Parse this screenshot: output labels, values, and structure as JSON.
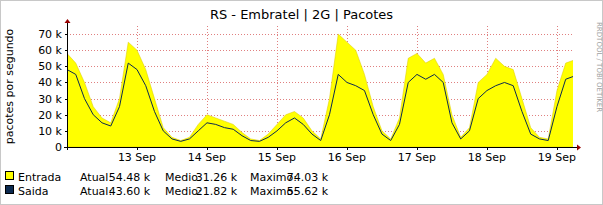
{
  "chart_data": {
    "type": "area",
    "title": "RS - Embratel | 2G | Pacotes",
    "y_label": "pacotes por segundo",
    "annotations": [
      "RRDTOOL / TOBI OETIKER"
    ],
    "x": [
      0,
      3,
      6,
      9,
      12,
      15,
      18,
      21,
      24,
      27,
      30,
      33,
      36,
      39,
      42,
      45,
      48,
      51,
      54,
      57,
      60,
      63,
      66,
      69,
      72,
      75,
      78,
      81,
      84,
      87,
      90,
      93,
      96,
      99,
      102,
      105,
      108,
      111,
      114,
      117,
      120,
      123,
      126,
      129,
      132,
      135,
      138,
      141,
      144,
      147,
      150,
      153,
      156,
      159,
      162,
      165,
      168,
      171,
      174
    ],
    "xlim": [
      0,
      173.5
    ],
    "xticks": [
      {
        "value": 24,
        "label": "13 Sep"
      },
      {
        "value": 48,
        "label": "14 Sep"
      },
      {
        "value": 72,
        "label": "15 Sep"
      },
      {
        "value": 96,
        "label": "16 Sep"
      },
      {
        "value": 120,
        "label": "17 Sep"
      },
      {
        "value": 144,
        "label": "18 Sep"
      },
      {
        "value": 168,
        "label": "19 Sep"
      }
    ],
    "ylim": [
      0,
      75000
    ],
    "yticks": [
      0,
      {
        "value": 10000,
        "label": "10 k"
      },
      {
        "value": 20000,
        "label": "20 k"
      },
      {
        "value": 30000,
        "label": "30 k"
      },
      {
        "value": 40000,
        "label": "40 k"
      },
      {
        "value": 50000,
        "label": "50 k"
      },
      {
        "value": 60000,
        "label": "60 k"
      },
      {
        "value": 70000,
        "label": "70 k"
      }
    ],
    "grid": true,
    "series": [
      {
        "name": "Entrada",
        "type": "area",
        "color": "#ffff00",
        "stats": [
          {
            "label": "Atual:",
            "value": "54.48 k"
          },
          {
            "label": "Medio:",
            "value": "31.26 k"
          },
          {
            "label": "Maximo:",
            "value": "74.03 k"
          }
        ],
        "values": [
          58000,
          52000,
          40000,
          25000,
          18000,
          15000,
          30000,
          65000,
          60000,
          48000,
          30000,
          12000,
          6000,
          4000,
          6000,
          14000,
          20000,
          18000,
          16000,
          14000,
          9000,
          5000,
          4000,
          8000,
          14000,
          20000,
          22000,
          18000,
          10000,
          5000,
          30000,
          70000,
          65000,
          60000,
          45000,
          25000,
          10000,
          5000,
          18000,
          55000,
          58000,
          52000,
          55000,
          45000,
          20000,
          6000,
          12000,
          40000,
          45000,
          55000,
          50000,
          48000,
          30000,
          12000,
          6000,
          5000,
          35000,
          52000,
          54000
        ]
      },
      {
        "name": "Saida",
        "type": "line",
        "color": "#0c2a50",
        "stats": [
          {
            "label": "Atual:",
            "value": "43.60 k"
          },
          {
            "label": "Medio:",
            "value": "21.82 k"
          },
          {
            "label": "Maximo:",
            "value": "55.62 k"
          }
        ],
        "values": [
          48000,
          45000,
          30000,
          20000,
          15000,
          13000,
          25000,
          52000,
          48000,
          38000,
          22000,
          10000,
          5000,
          3500,
          5000,
          10000,
          15000,
          14000,
          12000,
          11000,
          7000,
          4000,
          3500,
          6000,
          10000,
          15000,
          18000,
          14000,
          8000,
          4000,
          20000,
          45000,
          40000,
          38000,
          35000,
          20000,
          8000,
          4000,
          14000,
          40000,
          45000,
          42000,
          45000,
          40000,
          15000,
          5000,
          10000,
          30000,
          35000,
          38000,
          40000,
          38000,
          22000,
          8000,
          5000,
          4000,
          25000,
          42000,
          44000
        ]
      }
    ]
  }
}
